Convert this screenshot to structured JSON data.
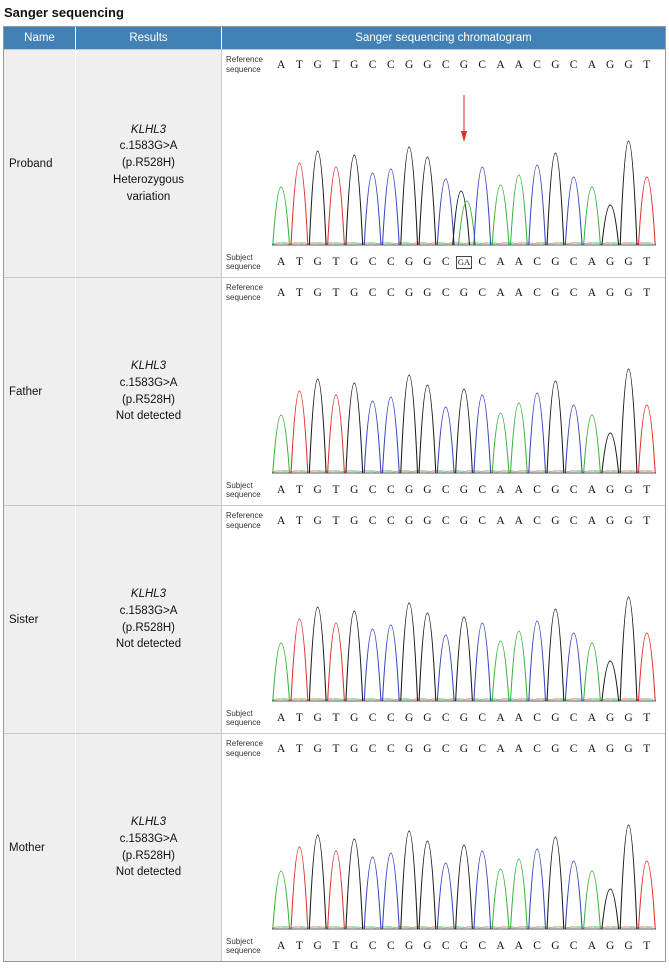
{
  "title": "Sanger sequencing",
  "table": {
    "headers": [
      "Name",
      "Results",
      "Sanger sequencing chromatogram"
    ],
    "rows": [
      {
        "name": "Proband",
        "results": {
          "gene": "KLHL3",
          "variant": "c.1583G>A",
          "protein": "(p.R528H)",
          "status": "Heterozygous variation"
        },
        "reference_label": "Reference sequence",
        "subject_label": "Subject sequence",
        "subject_bases": [
          "A",
          "T",
          "G",
          "T",
          "G",
          "C",
          "C",
          "G",
          "G",
          "C",
          "GA",
          "C",
          "A",
          "A",
          "C",
          "G",
          "C",
          "A",
          "G",
          "G",
          "T"
        ],
        "heterozygous_index": 10,
        "has_arrow": true
      },
      {
        "name": "Father",
        "results": {
          "gene": "KLHL3",
          "variant": "c.1583G>A",
          "protein": "(p.R528H)",
          "status": "Not detected"
        },
        "reference_label": "Reference sequence",
        "subject_label": "Subject sequence",
        "subject_bases": [
          "A",
          "T",
          "G",
          "T",
          "G",
          "C",
          "C",
          "G",
          "G",
          "C",
          "G",
          "C",
          "A",
          "A",
          "C",
          "G",
          "C",
          "A",
          "G",
          "G",
          "T"
        ],
        "heterozygous_index": null,
        "has_arrow": false
      },
      {
        "name": "Sister",
        "results": {
          "gene": "KLHL3",
          "variant": "c.1583G>A",
          "protein": "(p.R528H)",
          "status": "Not detected"
        },
        "reference_label": "Reference sequence",
        "subject_label": "Subject sequence",
        "subject_bases": [
          "A",
          "T",
          "G",
          "T",
          "G",
          "C",
          "C",
          "G",
          "G",
          "C",
          "G",
          "C",
          "A",
          "A",
          "C",
          "G",
          "C",
          "A",
          "G",
          "G",
          "T"
        ],
        "heterozygous_index": null,
        "has_arrow": false
      },
      {
        "name": "Mother",
        "results": {
          "gene": "KLHL3",
          "variant": "c.1583G>A",
          "protein": "(p.R528H)",
          "status": "Not detected"
        },
        "reference_label": "Reference sequence",
        "subject_label": "Subject sequence",
        "subject_bases": [
          "A",
          "T",
          "G",
          "T",
          "G",
          "C",
          "C",
          "G",
          "G",
          "C",
          "G",
          "C",
          "A",
          "A",
          "C",
          "G",
          "C",
          "A",
          "G",
          "G",
          "T"
        ],
        "heterozygous_index": null,
        "has_arrow": false
      }
    ]
  },
  "chart_data": {
    "type": "line",
    "title": "Sanger sequencing chromatogram",
    "reference_sequence": "ATGTGCCGGCGCAACGCAGGT",
    "x_bases": [
      "A",
      "T",
      "G",
      "T",
      "G",
      "C",
      "C",
      "G",
      "G",
      "C",
      "G",
      "C",
      "A",
      "A",
      "C",
      "G",
      "C",
      "A",
      "G",
      "G",
      "T"
    ],
    "base_colors": {
      "A": "#3bb33b",
      "T": "#e03127",
      "G": "#1a1a1a",
      "C": "#3545c0"
    },
    "peak_heights": [
      58,
      82,
      94,
      78,
      90,
      72,
      76,
      98,
      88,
      66,
      84,
      78,
      60,
      70,
      80,
      92,
      68,
      58,
      40,
      104,
      68
    ],
    "heterozygous_peaks": {
      "row": "Proband",
      "index": 10,
      "bases": [
        "G",
        "A"
      ],
      "heights": [
        54,
        44
      ]
    },
    "annotation": {
      "arrow_color": "#e03127",
      "arrow_row": "Proband",
      "arrow_index": 10
    },
    "baseline": true,
    "legend_position": "none",
    "grid": false
  }
}
